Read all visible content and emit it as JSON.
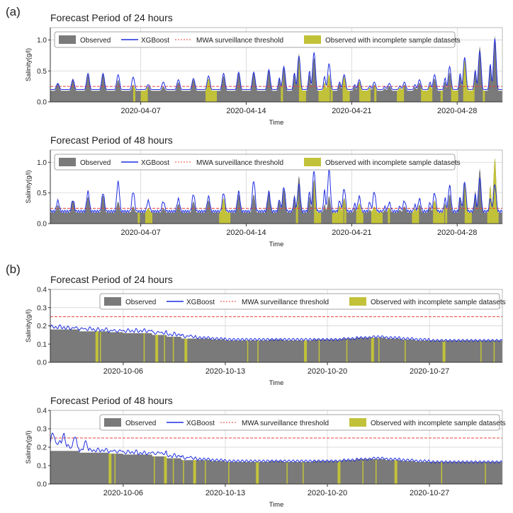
{
  "panels": [
    {
      "label": "(a)"
    },
    {
      "label": "(b)"
    }
  ],
  "colors": {
    "observed": "#7a7a7a",
    "incomplete": "#c2c23a",
    "xgboost": "#1f2ee0",
    "threshold": "#e8413a",
    "grid": "#d0d0d0"
  },
  "legend": {
    "observed": "Observed",
    "xgboost": "XGBoost",
    "threshold": "MWA surveillance threshold",
    "incomplete": "Observed with incomplete sample datasets"
  },
  "chart_data": [
    {
      "type": "area",
      "panel": "(a)",
      "title": "Forecast Period of 24 hours",
      "xlabel": "Time",
      "ylabel": "Salinity(g/l)",
      "xlim": [
        "2020-04-01",
        "2020-05-01"
      ],
      "ylim": [
        0,
        1.2
      ],
      "yticks": [
        0.0,
        0.5,
        1.0
      ],
      "ytick_labels": [
        "0.0",
        "0.5",
        "1.0"
      ],
      "xticks": [
        "2020-04-07",
        "2020-04-14",
        "2020-04-21",
        "2020-04-28"
      ],
      "grid": true,
      "legend_position": "top",
      "threshold": 0.25,
      "baseline": 0.18,
      "daily_peaks_observed": [
        0.3,
        0.38,
        0.44,
        0.46,
        0.36,
        0.28,
        0.25,
        0.25,
        0.32,
        0.36,
        0.38,
        0.42,
        0.48,
        0.48,
        0.52,
        0.56,
        0.78,
        0.72,
        0.45,
        0.42,
        0.33,
        0.28,
        0.26,
        0.28,
        0.31,
        0.38,
        0.48,
        0.68,
        0.9,
        1.07
      ],
      "daily_peaks_xgboost": [
        0.28,
        0.34,
        0.44,
        0.44,
        0.42,
        0.38,
        0.26,
        0.3,
        0.34,
        0.36,
        0.4,
        0.44,
        0.46,
        0.46,
        0.5,
        0.55,
        0.72,
        0.78,
        0.6,
        0.42,
        0.34,
        0.3,
        0.28,
        0.3,
        0.34,
        0.42,
        0.55,
        0.7,
        0.8,
        1.0
      ],
      "incomplete_days": [
        5.5,
        6.0,
        10.3,
        15.3,
        16.5,
        17.8,
        18.6,
        19.4,
        20.5,
        21.5,
        23.0,
        24.6,
        25.9,
        26.6,
        27.4,
        28.7
      ]
    },
    {
      "type": "area",
      "panel": "(a)",
      "title": "Forecast Period of 48 hours",
      "xlabel": "Time",
      "ylabel": "Salinity(g/l)",
      "xlim": [
        "2020-04-01",
        "2020-05-01"
      ],
      "ylim": [
        0,
        1.2
      ],
      "yticks": [
        0.0,
        0.5,
        1.0
      ],
      "ytick_labels": [
        "0.0",
        "0.5",
        "1.0"
      ],
      "xticks": [
        "2020-04-07",
        "2020-04-14",
        "2020-04-21",
        "2020-04-28"
      ],
      "grid": true,
      "legend_position": "top",
      "threshold": 0.25,
      "baseline": 0.18,
      "daily_peaks_observed": [
        0.3,
        0.38,
        0.44,
        0.46,
        0.36,
        0.28,
        0.25,
        0.25,
        0.32,
        0.36,
        0.38,
        0.42,
        0.48,
        0.48,
        0.52,
        0.56,
        0.78,
        0.72,
        0.45,
        0.42,
        0.33,
        0.28,
        0.26,
        0.28,
        0.31,
        0.38,
        0.48,
        0.68,
        0.9,
        1.07
      ],
      "daily_peaks_xgboost": [
        0.35,
        0.36,
        0.5,
        0.48,
        0.66,
        0.5,
        0.35,
        0.34,
        0.38,
        0.46,
        0.42,
        0.48,
        0.5,
        0.68,
        0.5,
        0.58,
        0.62,
        0.85,
        0.86,
        0.55,
        0.42,
        0.5,
        0.32,
        0.35,
        0.38,
        0.48,
        0.6,
        0.66,
        0.72,
        0.62
      ],
      "incomplete_days": [
        5.8,
        6.3,
        11.2,
        16.3,
        17.5,
        18.7,
        19.5,
        20.3,
        21.3,
        22.4,
        24.0,
        25.4,
        26.2,
        27.5,
        29.0
      ]
    },
    {
      "type": "area",
      "panel": "(b)",
      "title": "Forecast Period of 24 hours",
      "xlabel": "Time",
      "ylabel": "Salinity(g/l)",
      "xlim": [
        "2020-10-01",
        "2020-11-01"
      ],
      "ylim": [
        0,
        0.4
      ],
      "yticks": [
        0.0,
        0.1,
        0.2,
        0.3,
        0.4
      ],
      "ytick_labels": [
        "0.0",
        "0.1",
        "0.2",
        "0.3",
        "0.4"
      ],
      "xticks": [
        "2020-10-06",
        "2020-10-13",
        "2020-10-20",
        "2020-10-27"
      ],
      "grid": true,
      "legend_position": "top-right",
      "threshold": 0.25,
      "observed_levels": [
        0.18,
        0.18,
        0.17,
        0.17,
        0.165,
        0.16,
        0.16,
        0.15,
        0.14,
        0.13,
        0.13,
        0.125,
        0.12,
        0.12,
        0.12,
        0.125,
        0.12,
        0.12,
        0.125,
        0.125,
        0.13,
        0.135,
        0.135,
        0.13,
        0.125,
        0.12,
        0.12,
        0.12,
        0.12,
        0.12,
        0.12
      ],
      "xgboost_levels": [
        0.19,
        0.185,
        0.18,
        0.175,
        0.17,
        0.17,
        0.17,
        0.16,
        0.15,
        0.14,
        0.135,
        0.13,
        0.125,
        0.125,
        0.125,
        0.125,
        0.125,
        0.125,
        0.125,
        0.125,
        0.13,
        0.135,
        0.14,
        0.135,
        0.13,
        0.125,
        0.12,
        0.12,
        0.12,
        0.12,
        0.12
      ],
      "incomplete_days": [
        3.1,
        3.4,
        6.4,
        7.2,
        7.8,
        8.4,
        9.2,
        13.5,
        14.2,
        17.4,
        18.4,
        20.3,
        22.0,
        22.5,
        24.3,
        26.9,
        29.5,
        30.4
      ]
    },
    {
      "type": "area",
      "panel": "(b)",
      "title": "Forecast Period of 48 hours",
      "xlabel": "Time",
      "ylabel": "Salinity(g/l)",
      "xlim": [
        "2020-10-01",
        "2020-11-01"
      ],
      "ylim": [
        0,
        0.4
      ],
      "yticks": [
        0.0,
        0.1,
        0.2,
        0.3,
        0.4
      ],
      "ytick_labels": [
        "0.0",
        "0.1",
        "0.2",
        "0.3",
        "0.4"
      ],
      "xticks": [
        "2020-10-06",
        "2020-10-13",
        "2020-10-20",
        "2020-10-27"
      ],
      "grid": true,
      "legend_position": "top-right",
      "threshold": 0.25,
      "observed_levels": [
        0.18,
        0.18,
        0.17,
        0.17,
        0.165,
        0.16,
        0.16,
        0.15,
        0.14,
        0.13,
        0.13,
        0.125,
        0.12,
        0.12,
        0.12,
        0.125,
        0.12,
        0.12,
        0.125,
        0.125,
        0.13,
        0.135,
        0.135,
        0.13,
        0.125,
        0.12,
        0.12,
        0.12,
        0.12,
        0.12,
        0.12
      ],
      "xgboost_levels": [
        0.22,
        0.2,
        0.18,
        0.18,
        0.175,
        0.17,
        0.165,
        0.165,
        0.15,
        0.14,
        0.135,
        0.13,
        0.125,
        0.125,
        0.125,
        0.125,
        0.125,
        0.125,
        0.125,
        0.125,
        0.13,
        0.135,
        0.14,
        0.135,
        0.13,
        0.125,
        0.12,
        0.12,
        0.12,
        0.12,
        0.12
      ],
      "incomplete_days": [
        4.0,
        4.4,
        7.1,
        7.8,
        8.4,
        9.1,
        9.8,
        10.6,
        12.2,
        14.1,
        16.2,
        17.3,
        19.7,
        21.4,
        22.3,
        23.6,
        26.8,
        29.8
      ]
    }
  ]
}
